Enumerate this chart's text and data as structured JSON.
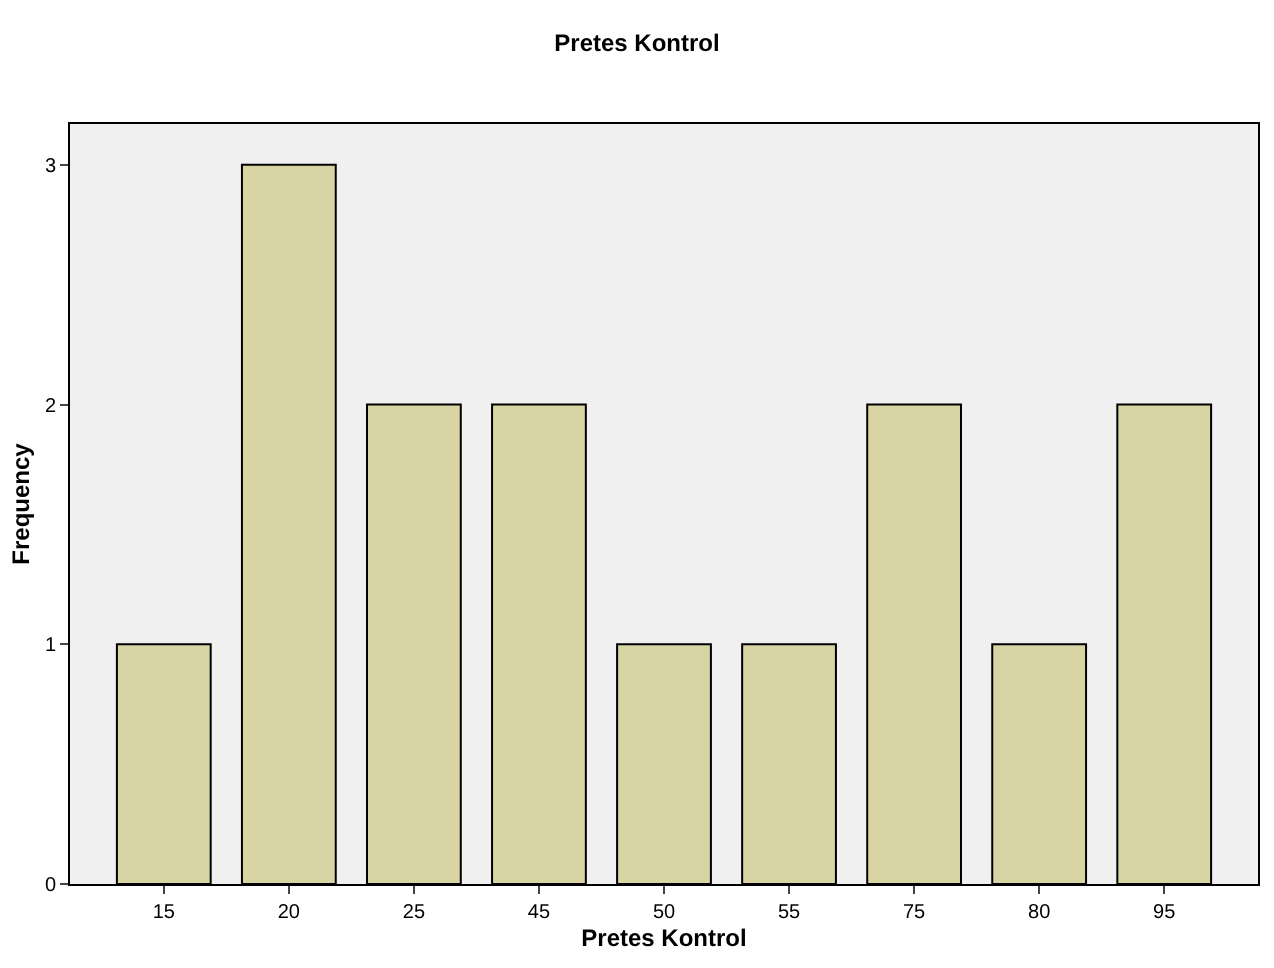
{
  "chart_data": {
    "type": "bar",
    "title": "Pretes Kontrol",
    "xlabel": "Pretes Kontrol",
    "ylabel": "Frequency",
    "categories": [
      "15",
      "20",
      "25",
      "45",
      "50",
      "55",
      "75",
      "80",
      "95"
    ],
    "values": [
      1,
      3,
      2,
      2,
      1,
      1,
      2,
      1,
      2
    ],
    "color": "#d8d4a3",
    "ylim": [
      0,
      3.17
    ],
    "yticks": [
      0,
      1,
      2,
      3
    ],
    "grid": false
  }
}
